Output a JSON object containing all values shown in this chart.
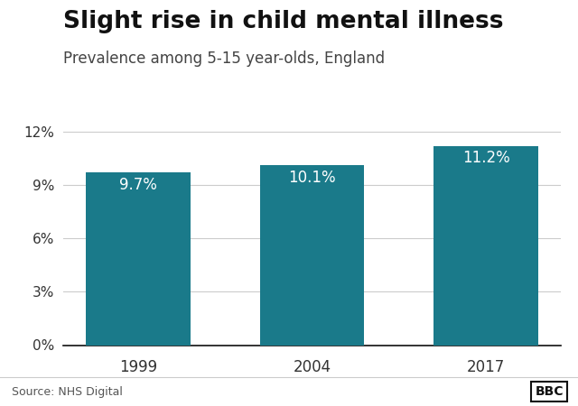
{
  "title": "Slight rise in child mental illness",
  "subtitle": "Prevalence among 5-15 year-olds, England",
  "categories": [
    "1999",
    "2004",
    "2017"
  ],
  "values": [
    9.7,
    10.1,
    11.2
  ],
  "bar_color": "#1a7a8a",
  "label_color": "#ffffff",
  "label_fontsize": 12,
  "title_fontsize": 19,
  "subtitle_fontsize": 12,
  "ylim": [
    0,
    13
  ],
  "yticks": [
    0,
    3,
    6,
    9,
    12
  ],
  "ytick_labels": [
    "0%",
    "3%",
    "6%",
    "9%",
    "12%"
  ],
  "source_text": "Source: NHS Digital",
  "bbc_text": "BBC",
  "background_color": "#ffffff",
  "grid_color": "#cccccc",
  "bar_width": 0.6
}
